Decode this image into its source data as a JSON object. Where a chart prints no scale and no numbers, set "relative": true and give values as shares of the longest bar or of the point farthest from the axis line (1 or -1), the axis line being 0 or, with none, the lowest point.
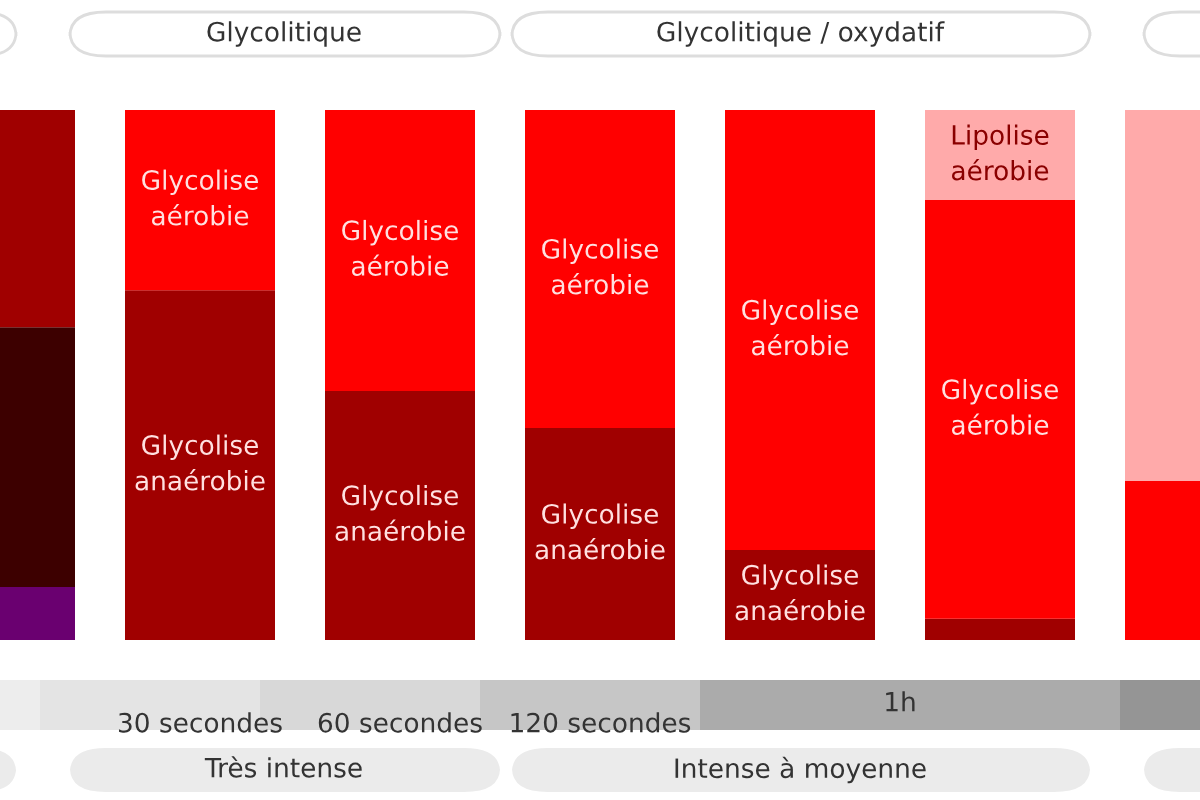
{
  "chart_data": {
    "type": "bar",
    "stacked": true,
    "relative": true,
    "categories": [
      null,
      "30 secondes",
      "60 secondes",
      "120 secondes",
      null,
      null,
      null
    ],
    "series": [
      {
        "color": "#6a0070",
        "values": [
          0.1,
          null,
          null,
          null,
          null,
          null,
          null
        ]
      },
      {
        "color": "#3d0000",
        "values": [
          0.49,
          null,
          null,
          null,
          null,
          null,
          null
        ]
      },
      {
        "name": "Glycolise anaérobie",
        "color": "#a00000",
        "values": [
          0.41,
          0.66,
          0.47,
          0.4,
          0.17,
          0.04,
          null
        ]
      },
      {
        "name": "Glycolise aérobie",
        "color": "#ff0000",
        "values": [
          null,
          0.34,
          0.53,
          0.6,
          0.83,
          0.79,
          0.3
        ]
      },
      {
        "name": "Lipolise aérobie",
        "color": "#ffaaaa",
        "values": [
          null,
          null,
          null,
          null,
          null,
          0.17,
          0.7
        ]
      }
    ],
    "annotations": [
      "Glycolitique",
      "Glycolitique / oxydatif",
      "Très intense",
      "Intense à moyenne",
      "1h"
    ]
  }
}
